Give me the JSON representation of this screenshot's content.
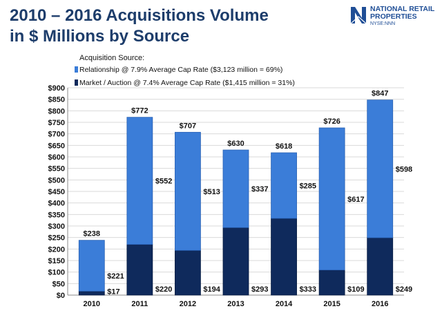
{
  "header": {
    "title_line1": "2010 – 2016 Acquisitions Volume",
    "title_line2": "in $ Millions by Source"
  },
  "logo": {
    "line1": "NATIONAL RETAIL",
    "line2": "PROPERTIES",
    "ticker": "NYSE:NNN",
    "color": "#1f4e96"
  },
  "legend": {
    "title": "Acquisition Source:",
    "position": "top-left"
  },
  "colors": {
    "relationship": "#3b7dd8",
    "relationship_dark": "#2a62b4",
    "market": "#0f2a5c",
    "market_dark": "#081c42",
    "grid": "#d9d9d9",
    "text": "#111111",
    "title": "#1d3d6b"
  },
  "chart_data": {
    "type": "bar",
    "stacked": true,
    "categories": [
      "2010",
      "2011",
      "2012",
      "2013",
      "2014",
      "2015",
      "2016"
    ],
    "series": [
      {
        "name": "Market / Auction @ 7.4% Average Cap Rate ($1,415 million = 31%)",
        "values": [
          17,
          220,
          194,
          293,
          333,
          109,
          249
        ],
        "labels": [
          "$17",
          "$220",
          "$194",
          "$293",
          "$333",
          "$109",
          "$249"
        ]
      },
      {
        "name": "Relationship @ 7.9% Average Cap Rate ($3,123 million = 69%)",
        "values": [
          221,
          552,
          513,
          337,
          285,
          617,
          598
        ],
        "labels": [
          "$221",
          "$552",
          "$513",
          "$337",
          "$285",
          "$617",
          "$598"
        ]
      }
    ],
    "totals": [
      238,
      772,
      707,
      630,
      618,
      726,
      847
    ],
    "total_labels": [
      "$238",
      "$772",
      "$707",
      "$630",
      "$618",
      "$726",
      "$847"
    ],
    "y_ticks": [
      "$0",
      "$50",
      "$100",
      "$150",
      "$200",
      "$250",
      "$300",
      "$350",
      "$400",
      "$450",
      "$500",
      "$550",
      "$600",
      "$650",
      "$700",
      "$750",
      "$800",
      "$850",
      "$900"
    ],
    "ylim": [
      0,
      900
    ],
    "grid": true,
    "title": "2010 – 2016 Acquisitions Volume in $ Millions by Source",
    "xlabel": "",
    "ylabel": ""
  }
}
